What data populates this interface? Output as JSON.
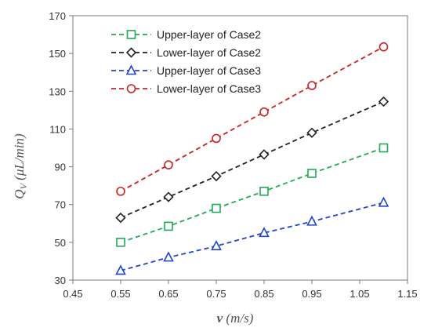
{
  "chart_data": {
    "type": "scatter",
    "xlabel": "v (m/s)",
    "ylabel": "Q_V (μL/min)",
    "xlim": [
      0.45,
      1.15
    ],
    "ylim": [
      30,
      170
    ],
    "xticks": [
      "0.45",
      "0.55",
      "0.65",
      "0.75",
      "0.85",
      "0.95",
      "1.05",
      "1.15"
    ],
    "yticks": [
      "30",
      "50",
      "70",
      "90",
      "110",
      "130",
      "150",
      "170"
    ],
    "grid": false,
    "legend_position": "top-left",
    "x": [
      0.55,
      0.65,
      0.75,
      0.85,
      0.95,
      1.1
    ],
    "series": [
      {
        "name": "Upper-layer of Case2",
        "marker": "square",
        "color": "#22aa55",
        "values": [
          50,
          58.5,
          68,
          77,
          86.5,
          100
        ]
      },
      {
        "name": "Lower-layer of Case2",
        "marker": "diamond",
        "color": "#222222",
        "values": [
          63,
          74,
          85,
          96.5,
          108,
          124.5
        ]
      },
      {
        "name": "Upper-layer of Case3",
        "marker": "triangle",
        "color": "#2244cc",
        "values": [
          35,
          42,
          48,
          55,
          61,
          71
        ]
      },
      {
        "name": "Lower-layer of Case3",
        "marker": "circle",
        "color": "#cc2222",
        "values": [
          77,
          91,
          105,
          119,
          133,
          153.5
        ]
      }
    ]
  }
}
